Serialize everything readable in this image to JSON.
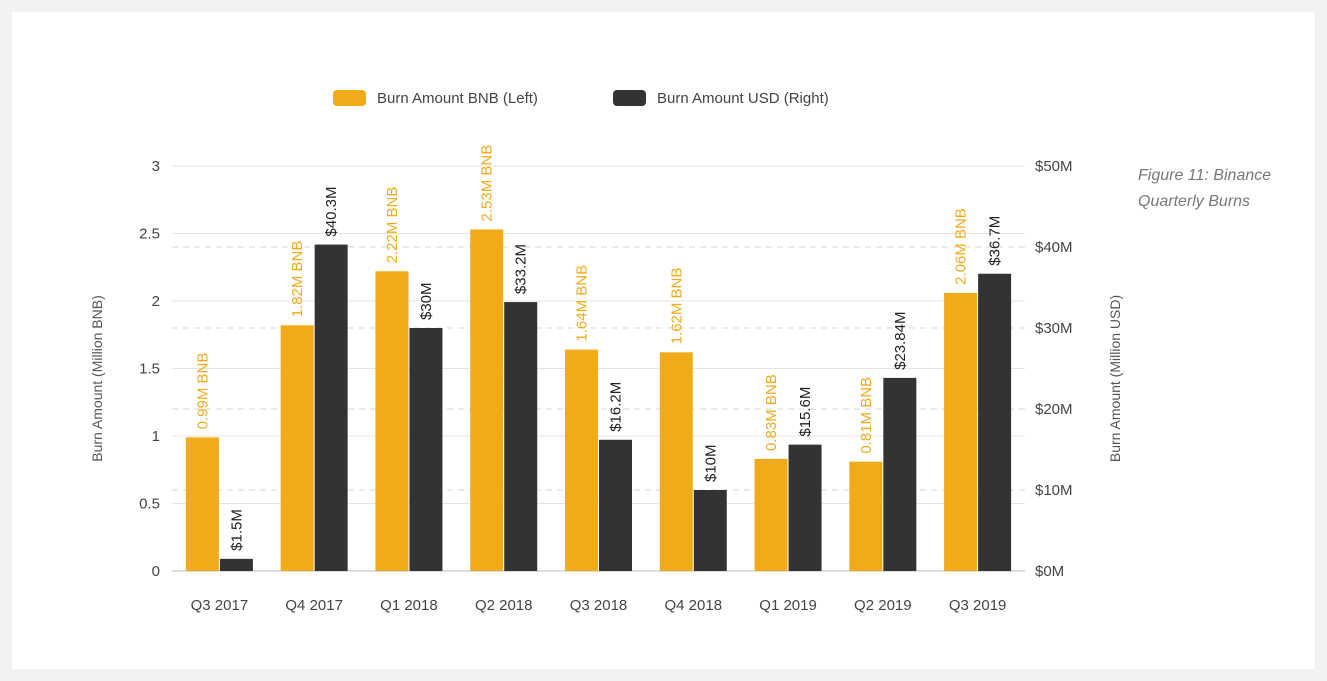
{
  "caption": {
    "line1": "Figure 11: Binance",
    "line2": "Quarterly Burns"
  },
  "colors": {
    "bnb": "#f0ab1b",
    "usd": "#333333",
    "axis_text": "#444444",
    "grid": "#d6d6d6"
  },
  "chart_data": {
    "type": "bar",
    "categories": [
      "Q3 2017",
      "Q4 2017",
      "Q1 2018",
      "Q2 2018",
      "Q3 2018",
      "Q4 2018",
      "Q1 2019",
      "Q2 2019",
      "Q3 2019"
    ],
    "series": [
      {
        "name": "Burn Amount BNB (Left)",
        "axis": "left",
        "values": [
          0.99,
          1.82,
          2.22,
          2.53,
          1.64,
          1.62,
          0.83,
          0.81,
          2.06
        ],
        "labels": [
          "0.99M BNB",
          "1.82M BNB",
          "2.22M BNB",
          "2.53M BNB",
          "1.64M BNB",
          "1.62M BNB",
          "0.83M BNB",
          "0.81M BNB",
          "2.06M BNB"
        ]
      },
      {
        "name": "Burn Amount USD (Right)",
        "axis": "right",
        "values": [
          1.5,
          40.3,
          30,
          33.2,
          16.2,
          10,
          15.6,
          23.84,
          36.7
        ],
        "labels": [
          "$1.5M",
          "$40.3M",
          "$30M",
          "$33.2M",
          "$16.2M",
          "$10M",
          "$15.6M",
          "$23.84M",
          "$36.7M"
        ]
      }
    ],
    "y_left": {
      "label": "Burn Amount (Million BNB)",
      "range": [
        0,
        3
      ],
      "ticks": [
        0,
        0.5,
        1,
        1.5,
        2,
        2.5,
        3
      ],
      "tick_labels": [
        "0",
        "0.5",
        "1",
        "1.5",
        "2",
        "2.5",
        "3"
      ]
    },
    "y_right": {
      "label": "Burn Amount (Million USD)",
      "range": [
        0,
        50
      ],
      "ticks": [
        0,
        10,
        20,
        30,
        40,
        50
      ],
      "tick_labels": [
        "$0M",
        "$10M",
        "$20M",
        "$30M",
        "$40M",
        "$50M"
      ]
    },
    "legend_position": "top-center",
    "grid": true
  }
}
